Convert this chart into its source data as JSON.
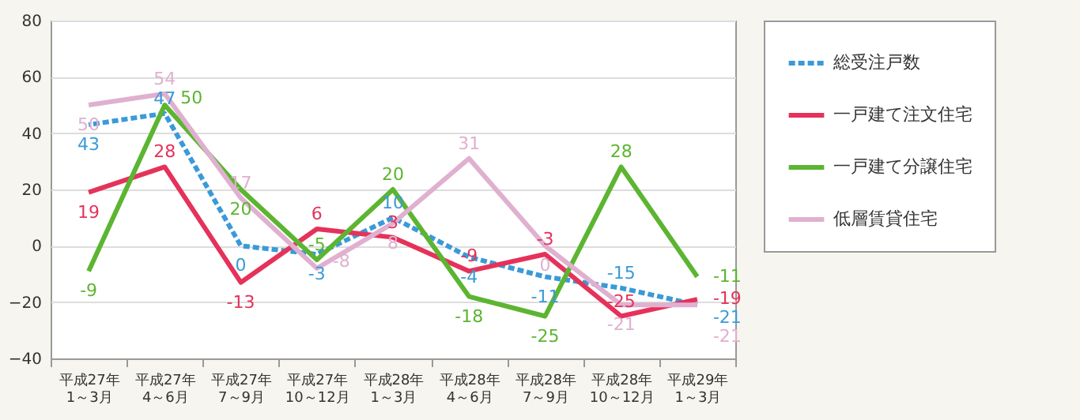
{
  "chart_data": {
    "type": "line",
    "categories": [
      "平成27年\n1～3月",
      "平成27年\n4～6月",
      "平成27年\n7～9月",
      "平成27年\n10～12月",
      "平成28年\n1～3月",
      "平成28年\n4～6月",
      "平成28年\n7～9月",
      "平成28年\n10～12月",
      "平成29年\n1～3月"
    ],
    "series": [
      {
        "name": "総受注戸数",
        "color": "#3a9ad9",
        "line_style": "dotted",
        "values": [
          43,
          47,
          0,
          -3,
          10,
          -4,
          -11,
          -15,
          -21
        ]
      },
      {
        "name": "一戸建て注文住宅",
        "color": "#e5325a",
        "line_style": "solid",
        "values": [
          19,
          28,
          -13,
          6,
          3,
          -9,
          -3,
          -25,
          -19
        ]
      },
      {
        "name": "一戸建て分譲住宅",
        "color": "#5cb531",
        "line_style": "solid",
        "values": [
          -9,
          50,
          20,
          -5,
          20,
          -18,
          -25,
          28,
          -11
        ]
      },
      {
        "name": "低層賃貸住宅",
        "color": "#e0b0d0",
        "line_style": "solid",
        "values": [
          50,
          54,
          17,
          -8,
          8,
          31,
          0,
          -21,
          -21
        ]
      }
    ],
    "ylim": [
      -40,
      80
    ],
    "yticks": [
      -40,
      -20,
      0,
      20,
      40,
      60,
      80
    ],
    "grid": "y",
    "legend": "right",
    "data_labels": true,
    "marker": "none"
  }
}
